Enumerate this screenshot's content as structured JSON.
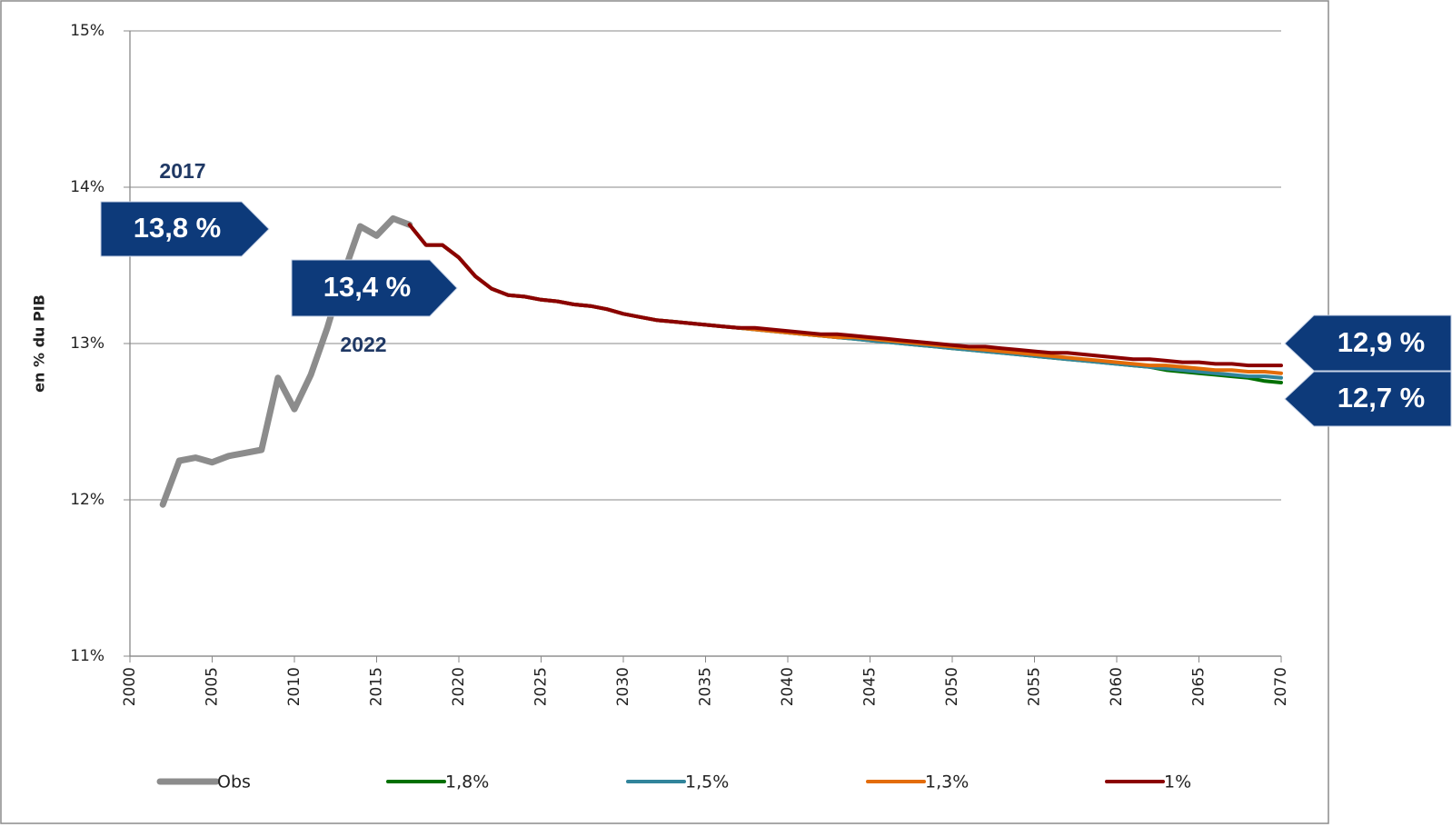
{
  "chart_data": {
    "type": "line",
    "y_label": "en % du PIB",
    "annotations": [
      "2017",
      "13,8 %",
      "13,4 %",
      "2022",
      "12,9 %",
      "12,7 %"
    ],
    "x": [
      2002,
      2003,
      2004,
      2005,
      2006,
      2007,
      2008,
      2009,
      2010,
      2011,
      2012,
      2013,
      2014,
      2015,
      2016,
      2017,
      2018,
      2019,
      2020,
      2021,
      2022,
      2023,
      2024,
      2025,
      2026,
      2027,
      2028,
      2029,
      2030,
      2031,
      2032,
      2033,
      2034,
      2035,
      2036,
      2037,
      2038,
      2039,
      2040,
      2041,
      2042,
      2043,
      2044,
      2045,
      2046,
      2047,
      2048,
      2049,
      2050,
      2051,
      2052,
      2053,
      2054,
      2055,
      2056,
      2057,
      2058,
      2059,
      2060,
      2061,
      2062,
      2063,
      2064,
      2065,
      2066,
      2067,
      2068,
      2069,
      2070
    ],
    "xlim": [
      2000,
      2070
    ],
    "xticks": [
      2000,
      2005,
      2010,
      2015,
      2020,
      2025,
      2030,
      2035,
      2040,
      2045,
      2050,
      2055,
      2060,
      2065,
      2070
    ],
    "ylim": [
      11,
      15
    ],
    "yticks": [
      {
        "value": 11,
        "label": "11%"
      },
      {
        "value": 12,
        "label": "12%"
      },
      {
        "value": 13,
        "label": "13%"
      },
      {
        "value": 14,
        "label": "14%"
      },
      {
        "value": 15,
        "label": "15%"
      }
    ],
    "grid": true,
    "legend": "bottom",
    "series": [
      {
        "name": "Obs",
        "color": "#8c8c8c",
        "values": [
          11.97,
          12.25,
          12.27,
          12.24,
          12.28,
          12.3,
          12.32,
          12.78,
          12.58,
          12.8,
          13.1,
          13.45,
          13.75,
          13.69,
          13.8,
          13.76,
          null,
          null,
          null,
          null,
          null,
          null,
          null,
          null,
          null,
          null,
          null,
          null,
          null,
          null,
          null,
          null,
          null,
          null,
          null,
          null,
          null,
          null,
          null,
          null,
          null,
          null,
          null,
          null,
          null,
          null,
          null,
          null,
          null,
          null,
          null,
          null,
          null,
          null,
          null,
          null,
          null,
          null,
          null,
          null,
          null,
          null,
          null,
          null,
          null,
          null,
          null,
          null,
          null
        ]
      },
      {
        "name": "1,8%",
        "color": "#007000",
        "values": [
          null,
          null,
          null,
          null,
          null,
          null,
          null,
          null,
          null,
          null,
          null,
          null,
          null,
          null,
          null,
          13.76,
          13.63,
          13.63,
          13.55,
          13.43,
          13.35,
          13.31,
          13.3,
          13.28,
          13.27,
          13.25,
          13.24,
          13.22,
          13.19,
          13.17,
          13.15,
          13.14,
          13.13,
          13.12,
          13.11,
          13.1,
          13.09,
          13.08,
          13.07,
          13.06,
          13.05,
          13.04,
          13.03,
          13.02,
          13.01,
          13.0,
          12.99,
          12.98,
          12.97,
          12.96,
          12.95,
          12.94,
          12.93,
          12.92,
          12.91,
          12.9,
          12.89,
          12.88,
          12.87,
          12.86,
          12.85,
          12.83,
          12.82,
          12.81,
          12.8,
          12.79,
          12.78,
          12.76,
          12.75
        ]
      },
      {
        "name": "1,5%",
        "color": "#31849b",
        "values": [
          null,
          null,
          null,
          null,
          null,
          null,
          null,
          null,
          null,
          null,
          null,
          null,
          null,
          null,
          null,
          13.76,
          13.63,
          13.63,
          13.55,
          13.43,
          13.35,
          13.31,
          13.3,
          13.28,
          13.27,
          13.25,
          13.24,
          13.22,
          13.19,
          13.17,
          13.15,
          13.14,
          13.13,
          13.12,
          13.11,
          13.1,
          13.09,
          13.08,
          13.07,
          13.06,
          13.05,
          13.04,
          13.03,
          13.02,
          13.01,
          13.0,
          12.99,
          12.98,
          12.97,
          12.96,
          12.95,
          12.94,
          12.93,
          12.92,
          12.91,
          12.9,
          12.89,
          12.88,
          12.87,
          12.86,
          12.85,
          12.84,
          12.83,
          12.82,
          12.81,
          12.8,
          12.79,
          12.79,
          12.78
        ]
      },
      {
        "name": "1,3%",
        "color": "#e36c09",
        "values": [
          null,
          null,
          null,
          null,
          null,
          null,
          null,
          null,
          null,
          null,
          null,
          null,
          null,
          null,
          null,
          13.76,
          13.63,
          13.63,
          13.55,
          13.43,
          13.35,
          13.31,
          13.3,
          13.28,
          13.27,
          13.25,
          13.24,
          13.22,
          13.19,
          13.17,
          13.15,
          13.14,
          13.13,
          13.12,
          13.11,
          13.1,
          13.09,
          13.08,
          13.07,
          13.06,
          13.05,
          13.04,
          13.04,
          13.03,
          13.02,
          13.01,
          13.0,
          12.99,
          12.98,
          12.97,
          12.96,
          12.95,
          12.94,
          12.93,
          12.92,
          12.91,
          12.9,
          12.89,
          12.88,
          12.87,
          12.86,
          12.86,
          12.85,
          12.84,
          12.83,
          12.83,
          12.82,
          12.82,
          12.81
        ]
      },
      {
        "name": "1%",
        "color": "#8b0000",
        "values": [
          null,
          null,
          null,
          null,
          null,
          null,
          null,
          null,
          null,
          null,
          null,
          null,
          null,
          null,
          null,
          13.76,
          13.63,
          13.63,
          13.55,
          13.43,
          13.35,
          13.31,
          13.3,
          13.28,
          13.27,
          13.25,
          13.24,
          13.22,
          13.19,
          13.17,
          13.15,
          13.14,
          13.13,
          13.12,
          13.11,
          13.1,
          13.1,
          13.09,
          13.08,
          13.07,
          13.06,
          13.06,
          13.05,
          13.04,
          13.03,
          13.02,
          13.01,
          13.0,
          12.99,
          12.98,
          12.98,
          12.97,
          12.96,
          12.95,
          12.94,
          12.94,
          12.93,
          12.92,
          12.91,
          12.9,
          12.9,
          12.89,
          12.88,
          12.88,
          12.87,
          12.87,
          12.86,
          12.86,
          12.86
        ]
      }
    ]
  }
}
